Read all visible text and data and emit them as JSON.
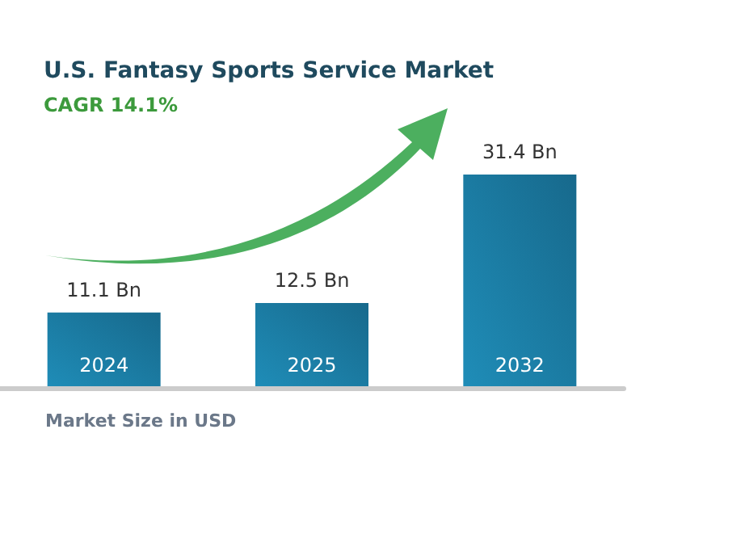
{
  "chart_data": {
    "type": "bar",
    "title": "U.S. Fantasy Sports Service Market",
    "subtitle": "CAGR 14.1%",
    "categories": [
      "2024",
      "2025",
      "2032"
    ],
    "values": [
      11.1,
      12.5,
      31.4
    ],
    "value_labels": [
      "11.1 Bn",
      "12.5 Bn",
      "31.4 Bn"
    ],
    "color": "#17698c",
    "annotations": [
      "Market Size in USD"
    ]
  }
}
